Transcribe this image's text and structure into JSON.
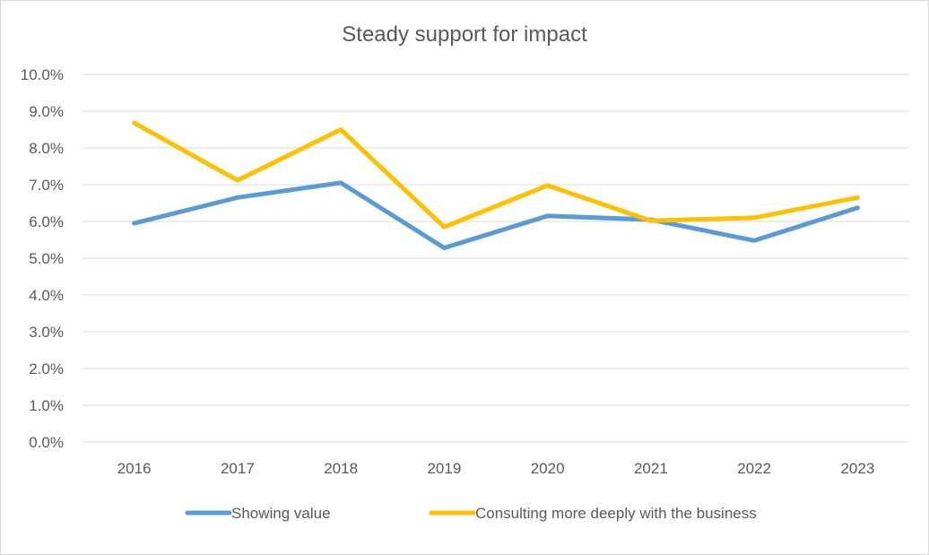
{
  "chart_data": {
    "type": "line",
    "title": "Steady support  for impact",
    "categories": [
      "2016",
      "2017",
      "2018",
      "2019",
      "2020",
      "2021",
      "2022",
      "2023"
    ],
    "y_ticks": [
      "0.0%",
      "1.0%",
      "2.0%",
      "3.0%",
      "4.0%",
      "5.0%",
      "6.0%",
      "7.0%",
      "8.0%",
      "9.0%",
      "10.0%"
    ],
    "ylim": [
      0,
      10
    ],
    "grid": true,
    "legend_position": "bottom",
    "series": [
      {
        "name": "Showing value",
        "color": "#5b9bd5",
        "values": [
          5.95,
          6.65,
          7.05,
          5.28,
          6.15,
          6.05,
          5.48,
          6.37
        ]
      },
      {
        "name": "Consulting more deeply with the business",
        "color": "#ffc000",
        "values": [
          8.68,
          7.12,
          8.5,
          5.85,
          6.98,
          6.02,
          6.1,
          6.65
        ]
      }
    ]
  }
}
